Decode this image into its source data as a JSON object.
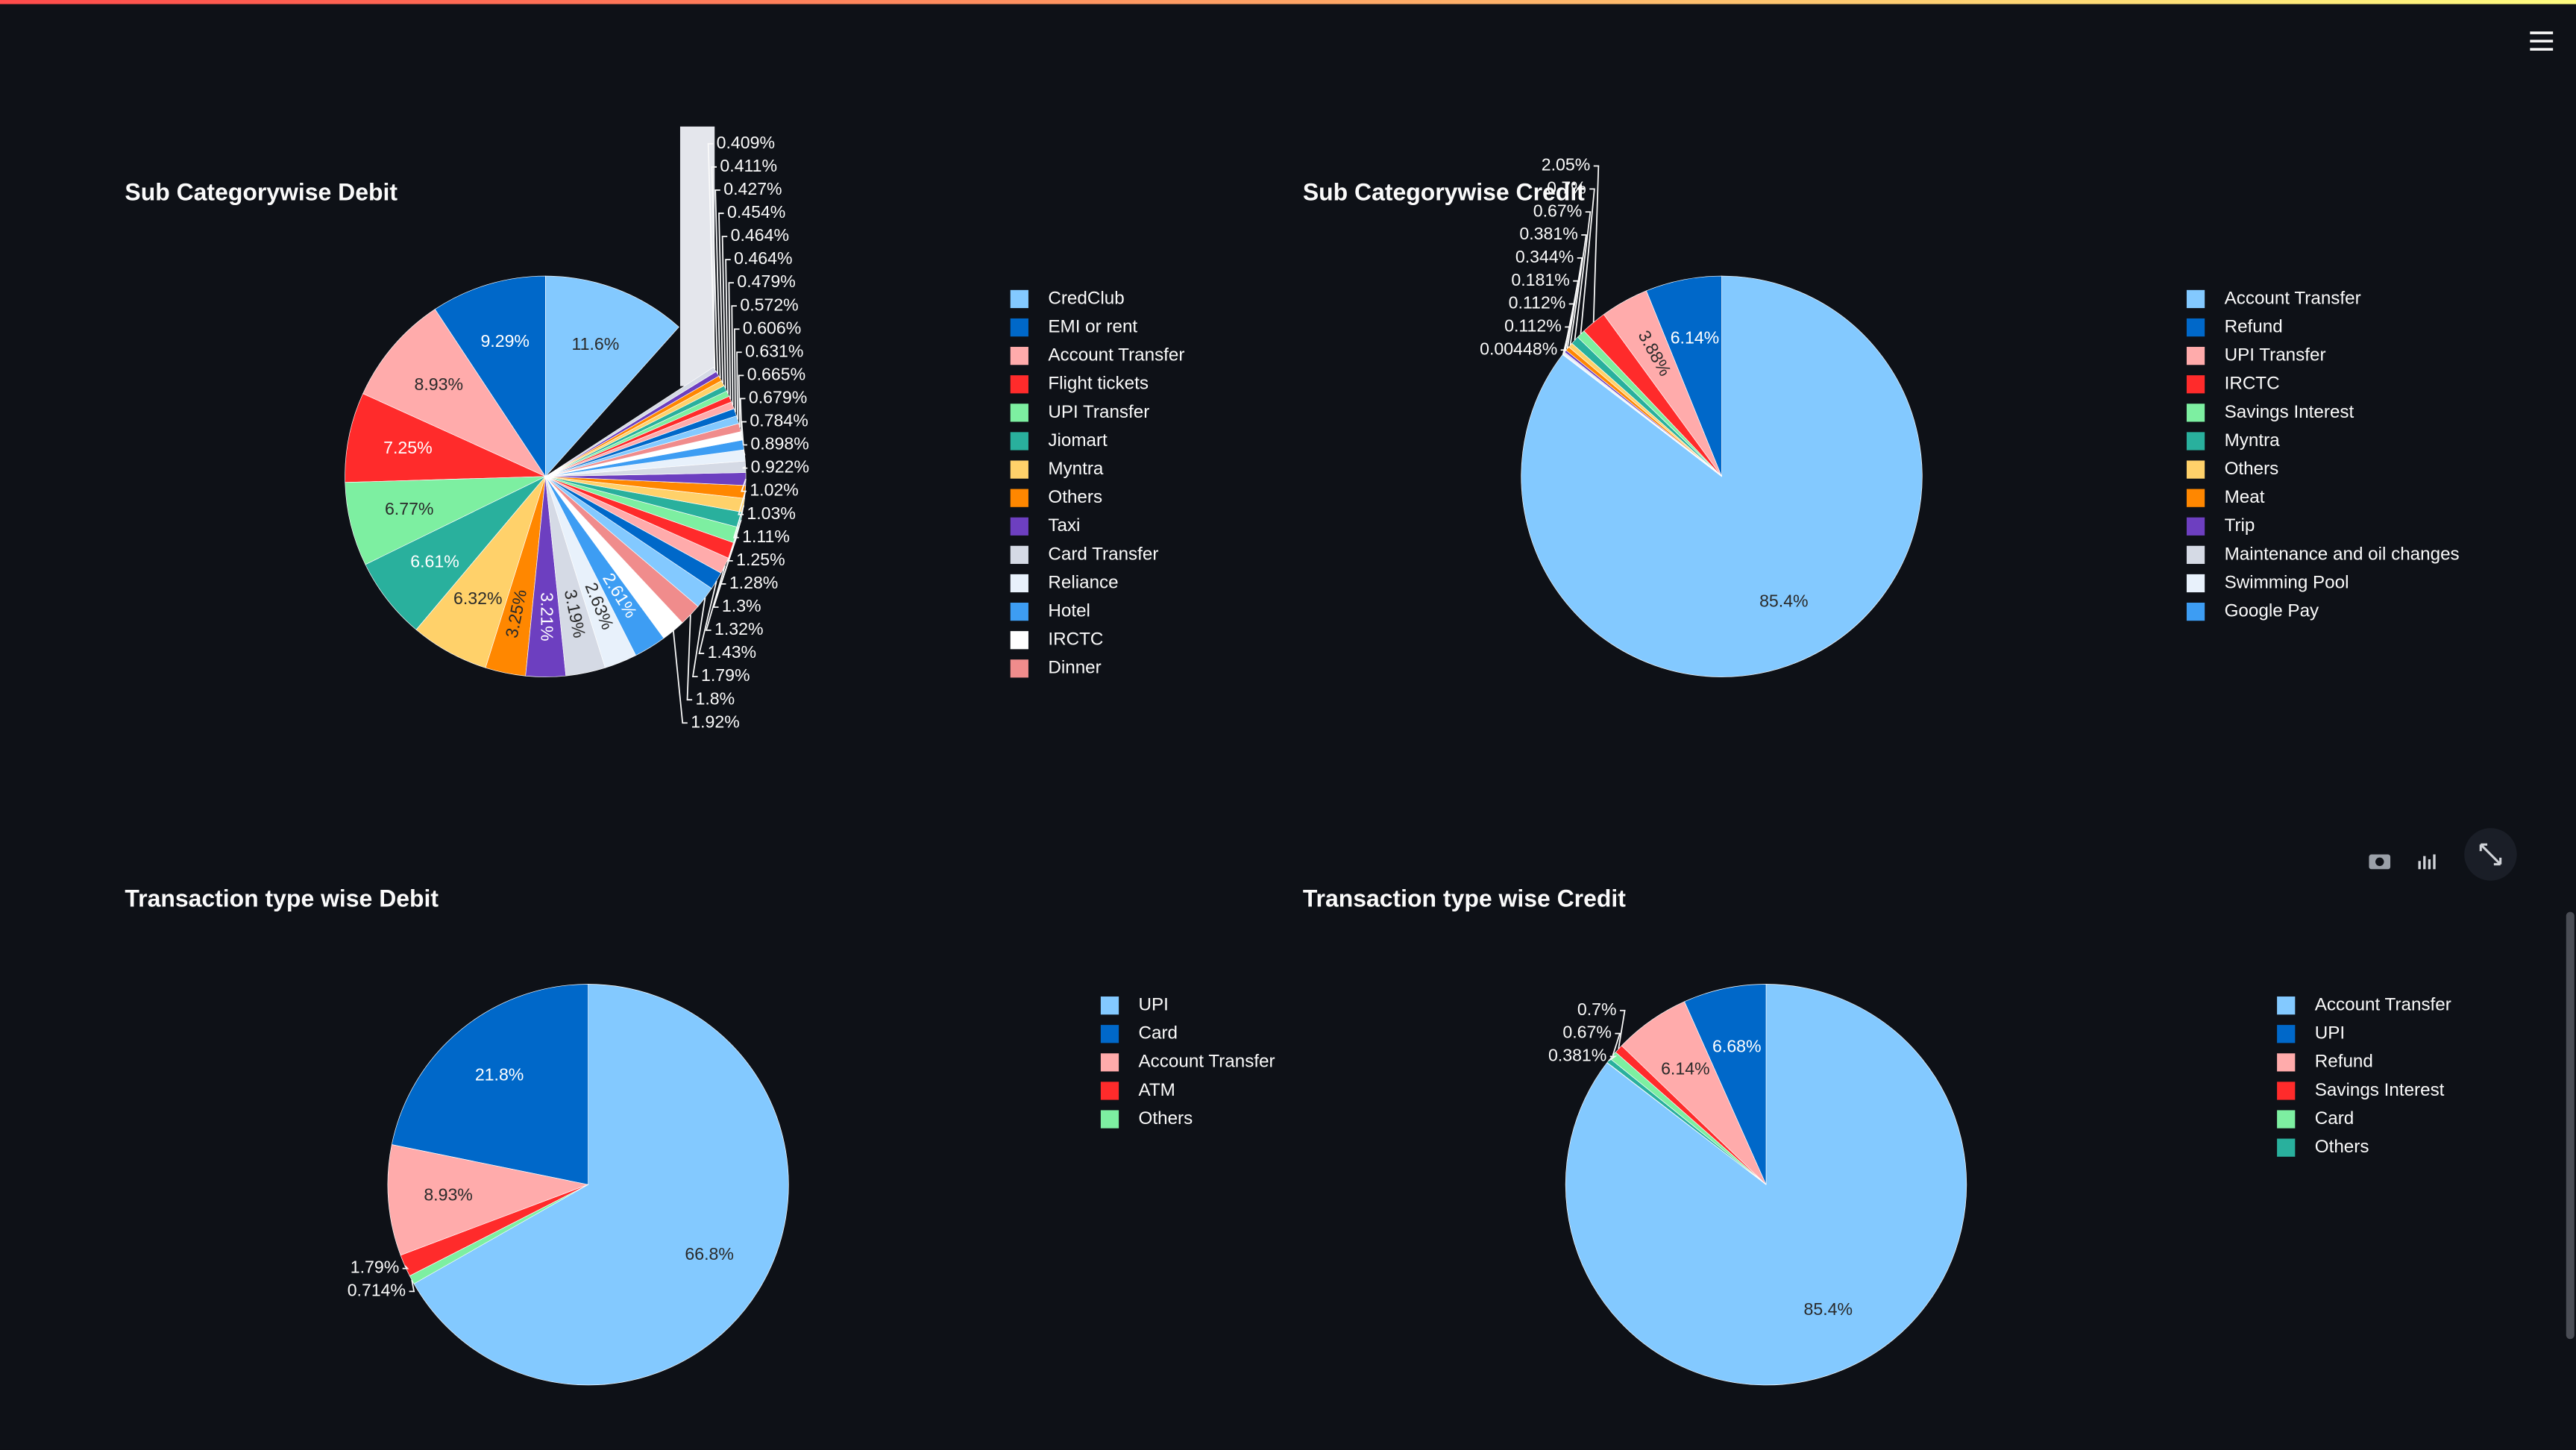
{
  "chart_data": [
    {
      "type": "pie",
      "title": "Sub Categorywise Debit",
      "categories": [
        "CredClub",
        "EMI or rent",
        "Account Transfer",
        "Flight tickets",
        "UPI Transfer",
        "Jiomart",
        "Myntra",
        "Others",
        "Taxi",
        "Card Transfer",
        "Reliance",
        "Hotel",
        "IRCTC",
        "Dinner",
        null,
        null,
        null,
        null,
        null,
        null,
        null,
        null,
        null,
        null,
        null,
        null,
        null,
        null,
        null,
        null,
        null,
        null,
        null,
        null,
        null,
        null,
        null,
        null
      ],
      "values": [
        11.6,
        9.29,
        8.93,
        7.25,
        6.77,
        6.61,
        6.32,
        3.25,
        3.21,
        3.19,
        2.63,
        2.61,
        1.92,
        1.8,
        1.79,
        1.43,
        1.32,
        1.3,
        1.28,
        1.25,
        1.11,
        1.03,
        1.02,
        0.922,
        0.898,
        0.784,
        0.679,
        0.665,
        0.631,
        0.606,
        0.572,
        0.479,
        0.464,
        0.464,
        0.454,
        0.427,
        0.411,
        0.409
      ],
      "value_labels": [
        "11.6%",
        "9.29%",
        "8.93%",
        "7.25%",
        "6.77%",
        "6.61%",
        "6.32%",
        "3.25%",
        "3.21%",
        "3.19%",
        "2.63%",
        "2.61%",
        "1.92%",
        "1.8%",
        "1.79%",
        "1.43%",
        "1.32%",
        "1.3%",
        "1.28%",
        "1.25%",
        "1.11%",
        "1.03%",
        "1.02%",
        "0.922%",
        "0.898%",
        "0.784%",
        "0.679%",
        "0.665%",
        "0.631%",
        "0.606%",
        "0.572%",
        "0.479%",
        "0.464%",
        "0.464%",
        "0.454%",
        "0.427%",
        "0.411%",
        "0.409%"
      ],
      "colors": [
        "#83c9ff",
        "#0068c9",
        "#ffabab",
        "#ff2b2b",
        "#7defa1",
        "#29b09d",
        "#ffd16a",
        "#ff8700",
        "#6d3fc0",
        "#d5dae5",
        "#e8f1fb",
        "#3d9df3",
        "#ffffff",
        "#f08c8c",
        "#83c9ff",
        "#0068c9",
        "#ffabab",
        "#ff2b2b",
        "#7defa1",
        "#29b09d",
        "#ffd16a",
        "#ff8700",
        "#6d3fc0",
        "#d5dae5",
        "#e8f1fb",
        "#3d9df3",
        "#ffffff",
        "#f08c8c",
        "#83c9ff",
        "#0068c9",
        "#ffabab",
        "#ff2b2b",
        "#7defa1",
        "#29b09d",
        "#ffd16a",
        "#ff8700",
        "#6d3fc0",
        "#d5dae5"
      ]
    },
    {
      "type": "pie",
      "title": "Sub Categorywise Credit",
      "categories": [
        "Account Transfer",
        "Refund",
        "UPI Transfer",
        "IRCTC",
        "Savings Interest",
        "Myntra",
        "Others",
        "Meat",
        "Trip",
        "Maintenance and oil changes",
        "Swimming Pool",
        "Google Pay"
      ],
      "values": [
        85.4,
        6.14,
        3.88,
        2.05,
        0.7,
        0.67,
        0.381,
        0.344,
        0.181,
        0.112,
        0.112,
        0.00448
      ],
      "value_labels": [
        "85.4%",
        "6.14%",
        "3.88%",
        "2.05%",
        "0.7%",
        "0.67%",
        "0.381%",
        "0.344%",
        "0.181%",
        "0.112%",
        "0.112%",
        "0.00448%"
      ],
      "colors": [
        "#83c9ff",
        "#0068c9",
        "#ffabab",
        "#ff2b2b",
        "#7defa1",
        "#29b09d",
        "#ffd16a",
        "#ff8700",
        "#6d3fc0",
        "#d5dae5",
        "#e8f1fb",
        "#3d9df3"
      ]
    },
    {
      "type": "pie",
      "title": "Transaction type wise Debit",
      "categories": [
        "UPI",
        "Card",
        "Account Transfer",
        "ATM",
        "Others"
      ],
      "values": [
        66.8,
        21.8,
        8.93,
        1.79,
        0.714
      ],
      "value_labels": [
        "66.8%",
        "21.8%",
        "8.93%",
        "1.79%",
        "0.714%"
      ],
      "colors": [
        "#83c9ff",
        "#0068c9",
        "#ffabab",
        "#ff2b2b",
        "#7defa1"
      ]
    },
    {
      "type": "pie",
      "title": "Transaction type wise Credit",
      "categories": [
        "Account Transfer",
        "UPI",
        "Refund",
        "Savings Interest",
        "Card",
        "Others"
      ],
      "values": [
        85.4,
        6.68,
        6.14,
        0.7,
        0.67,
        0.381
      ],
      "value_labels": [
        "85.4%",
        "6.68%",
        "6.14%",
        "0.7%",
        "0.67%",
        "0.381%"
      ],
      "colors": [
        "#83c9ff",
        "#0068c9",
        "#ffabab",
        "#ff2b2b",
        "#7defa1",
        "#29b09d"
      ]
    }
  ]
}
